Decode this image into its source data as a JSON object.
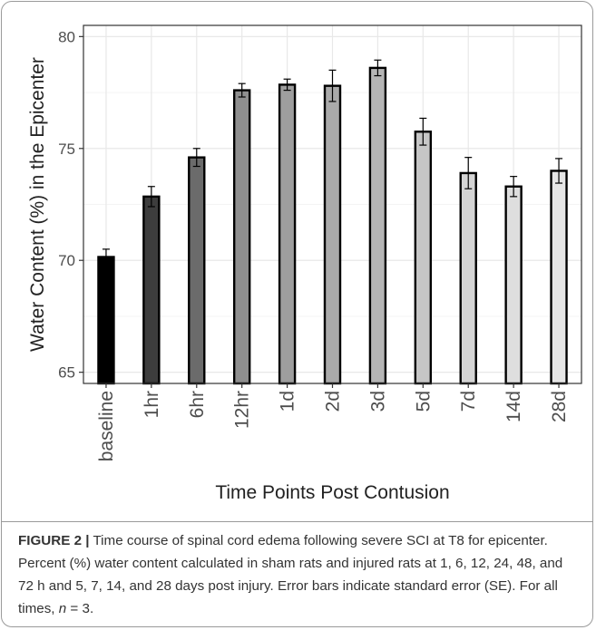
{
  "chart_data": {
    "type": "bar",
    "xlabel": "Time Points Post Contusion",
    "ylabel": "Water Content (%) in the Epicenter",
    "ylim": [
      64.5,
      80.5
    ],
    "yticks": [
      65,
      70,
      75,
      80
    ],
    "grid": true,
    "categories": [
      "baseline",
      "1hr",
      "6hr",
      "12hr",
      "1d",
      "2d",
      "3d",
      "5d",
      "7d",
      "14d",
      "28d"
    ],
    "values": [
      70.15,
      72.85,
      74.6,
      77.6,
      77.85,
      77.8,
      78.6,
      75.75,
      73.9,
      73.3,
      74.0
    ],
    "errors": [
      0.35,
      0.45,
      0.4,
      0.3,
      0.25,
      0.7,
      0.35,
      0.6,
      0.7,
      0.45,
      0.55
    ],
    "bar_colors": [
      "#000000",
      "#3d3d3d",
      "#6b6b6b",
      "#8f8f8f",
      "#9e9e9e",
      "#aaaaaa",
      "#b5b5b5",
      "#c6c6c6",
      "#d4d4d4",
      "#dedede",
      "#e6e6e6"
    ]
  },
  "caption": {
    "label": "FIGURE 2 |",
    "text_before_n": " Time course of spinal cord edema following severe SCI at T8 for epicenter. Percent (%) water content calculated in sham rats and injured rats at 1, 6, 12, 24, 48, and 72 h and 5, 7, 14, and 28 days post injury. Error bars indicate standard error (SE). For all times, ",
    "n_var": "n",
    "text_after_n": " = 3."
  },
  "colors": {
    "border": "#9a9a9a",
    "grid_major": "#e8e8e8",
    "grid_minor": "#f4f4f4",
    "text": "#222222",
    "tick_text": "#4d4d4d"
  }
}
